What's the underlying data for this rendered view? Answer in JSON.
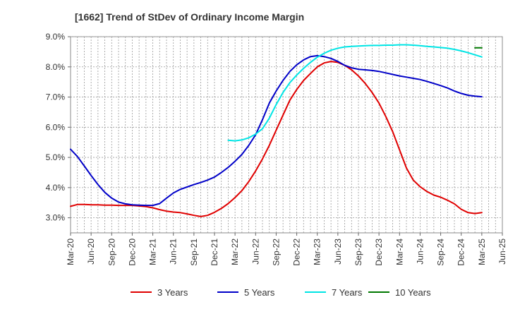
{
  "chart_data": {
    "type": "line",
    "title": "[1662]  Trend of StDev of Ordinary Income Margin",
    "xlabel": "",
    "ylabel": "",
    "ylim": [
      2.5,
      9.0
    ],
    "yticks": [
      3.0,
      4.0,
      5.0,
      6.0,
      7.0,
      8.0,
      9.0
    ],
    "ytick_labels": [
      "3.0%",
      "4.0%",
      "5.0%",
      "6.0%",
      "7.0%",
      "8.0%",
      "9.0%"
    ],
    "xlim": [
      "Mar-20",
      "Jun-25"
    ],
    "xtick_labels": [
      "Mar-20",
      "Jun-20",
      "Sep-20",
      "Dec-20",
      "Mar-21",
      "Jun-21",
      "Sep-21",
      "Dec-21",
      "Mar-22",
      "Jun-22",
      "Sep-22",
      "Dec-22",
      "Mar-23",
      "Jun-23",
      "Sep-23",
      "Dec-23",
      "Mar-24",
      "Jun-24",
      "Sep-24",
      "Dec-24",
      "Mar-25",
      "Jun-25"
    ],
    "grid": true,
    "legend_position": "bottom",
    "series": [
      {
        "name": "3 Years",
        "color": "#e00000",
        "x": [
          "Mar-20",
          "Apr-20",
          "May-20",
          "Jun-20",
          "Jul-20",
          "Aug-20",
          "Sep-20",
          "Oct-20",
          "Nov-20",
          "Dec-20",
          "Jan-21",
          "Feb-21",
          "Mar-21",
          "Apr-21",
          "May-21",
          "Jun-21",
          "Jul-21",
          "Aug-21",
          "Sep-21",
          "Oct-21",
          "Nov-21",
          "Dec-21",
          "Jan-22",
          "Feb-22",
          "Mar-22",
          "Apr-22",
          "May-22",
          "Jun-22",
          "Jul-22",
          "Aug-22",
          "Sep-22",
          "Oct-22",
          "Nov-22",
          "Dec-22",
          "Jan-23",
          "Feb-23",
          "Mar-23",
          "Apr-23",
          "May-23",
          "Jun-23",
          "Jul-23",
          "Aug-23",
          "Sep-23",
          "Oct-23",
          "Nov-23",
          "Dec-23",
          "Jan-24",
          "Feb-24",
          "Mar-24",
          "Apr-24",
          "May-24",
          "Jun-24",
          "Jul-24",
          "Aug-24",
          "Sep-24",
          "Oct-24",
          "Nov-24",
          "Dec-24",
          "Jan-25",
          "Feb-25",
          "Mar-25"
        ],
        "values": [
          3.38,
          3.44,
          3.44,
          3.43,
          3.43,
          3.42,
          3.42,
          3.41,
          3.41,
          3.41,
          3.39,
          3.37,
          3.33,
          3.27,
          3.22,
          3.19,
          3.17,
          3.13,
          3.08,
          3.04,
          3.08,
          3.18,
          3.31,
          3.47,
          3.67,
          3.9,
          4.2,
          4.55,
          4.95,
          5.4,
          5.9,
          6.4,
          6.9,
          7.25,
          7.55,
          7.78,
          8.0,
          8.13,
          8.18,
          8.15,
          8.05,
          7.9,
          7.7,
          7.45,
          7.15,
          6.8,
          6.35,
          5.85,
          5.25,
          4.65,
          4.25,
          4.03,
          3.87,
          3.75,
          3.68,
          3.58,
          3.46,
          3.28,
          3.17,
          3.14,
          3.17
        ]
      },
      {
        "name": "5 Years",
        "color": "#0000c8",
        "x": [
          "Mar-20",
          "Apr-20",
          "May-20",
          "Jun-20",
          "Jul-20",
          "Aug-20",
          "Sep-20",
          "Oct-20",
          "Nov-20",
          "Dec-20",
          "Jan-21",
          "Feb-21",
          "Mar-21",
          "Apr-21",
          "May-21",
          "Jun-21",
          "Jul-21",
          "Aug-21",
          "Sep-21",
          "Oct-21",
          "Nov-21",
          "Dec-21",
          "Jan-22",
          "Feb-22",
          "Mar-22",
          "Apr-22",
          "May-22",
          "Jun-22",
          "Jul-22",
          "Aug-22",
          "Sep-22",
          "Oct-22",
          "Nov-22",
          "Dec-22",
          "Jan-23",
          "Feb-23",
          "Mar-23",
          "Apr-23",
          "May-23",
          "Jun-23",
          "Jul-23",
          "Aug-23",
          "Sep-23",
          "Oct-23",
          "Nov-23",
          "Dec-23",
          "Jan-24",
          "Feb-24",
          "Mar-24",
          "Apr-24",
          "May-24",
          "Jun-24",
          "Jul-24",
          "Aug-24",
          "Sep-24",
          "Oct-24",
          "Nov-24",
          "Dec-24",
          "Jan-25",
          "Feb-25",
          "Mar-25"
        ],
        "values": [
          5.27,
          5.03,
          4.72,
          4.4,
          4.1,
          3.84,
          3.65,
          3.52,
          3.46,
          3.43,
          3.42,
          3.41,
          3.41,
          3.47,
          3.65,
          3.82,
          3.94,
          4.02,
          4.1,
          4.17,
          4.25,
          4.35,
          4.5,
          4.67,
          4.87,
          5.1,
          5.4,
          5.75,
          6.25,
          6.8,
          7.2,
          7.55,
          7.85,
          8.07,
          8.23,
          8.34,
          8.37,
          8.34,
          8.28,
          8.18,
          8.05,
          7.97,
          7.92,
          7.9,
          7.88,
          7.85,
          7.8,
          7.75,
          7.7,
          7.66,
          7.62,
          7.58,
          7.52,
          7.45,
          7.38,
          7.3,
          7.2,
          7.12,
          7.06,
          7.03,
          7.01
        ]
      },
      {
        "name": "7 Years",
        "color": "#00e5e5",
        "x": [
          "Feb-22",
          "Mar-22",
          "Apr-22",
          "May-22",
          "Jun-22",
          "Jul-22",
          "Aug-22",
          "Sep-22",
          "Oct-22",
          "Nov-22",
          "Dec-22",
          "Jan-23",
          "Feb-23",
          "Mar-23",
          "Apr-23",
          "May-23",
          "Jun-23",
          "Jul-23",
          "Aug-23",
          "Sep-23",
          "Oct-23",
          "Nov-23",
          "Dec-23",
          "Jan-24",
          "Feb-24",
          "Mar-24",
          "Apr-24",
          "May-24",
          "Jun-24",
          "Jul-24",
          "Aug-24",
          "Sep-24",
          "Oct-24",
          "Nov-24",
          "Dec-24",
          "Jan-25",
          "Feb-25",
          "Mar-25"
        ],
        "values": [
          5.57,
          5.55,
          5.58,
          5.65,
          5.77,
          5.95,
          6.3,
          6.75,
          7.15,
          7.48,
          7.73,
          7.95,
          8.15,
          8.32,
          8.45,
          8.55,
          8.62,
          8.66,
          8.68,
          8.69,
          8.7,
          8.71,
          8.71,
          8.72,
          8.72,
          8.73,
          8.73,
          8.72,
          8.7,
          8.68,
          8.66,
          8.64,
          8.62,
          8.58,
          8.53,
          8.47,
          8.4,
          8.33
        ]
      },
      {
        "name": "10 Years",
        "color": "#007800",
        "x": [
          "Feb-25",
          "Mar-25"
        ],
        "values": [
          8.63,
          8.63
        ]
      }
    ]
  }
}
